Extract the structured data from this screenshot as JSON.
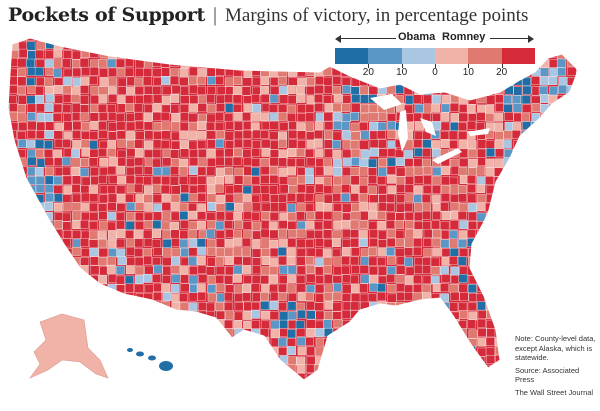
{
  "header": {
    "title": "Pockets of Support",
    "separator": "|",
    "subtitle": "Margins of victory, in percentage points"
  },
  "legend": {
    "left_label": "Obama",
    "right_label": "Romney",
    "ticks": [
      "20",
      "10",
      "0",
      "10",
      "20"
    ],
    "colors": [
      "#1f6fa6",
      "#5b97c6",
      "#a9c6e2",
      "#f1b3a8",
      "#e07a70",
      "#d42a3a"
    ]
  },
  "map": {
    "region": "Contiguous United States, Alaska and Hawaii by county",
    "dominant_color": "#d42a3a",
    "palette": {
      "obama_strong": "#1f6fa6",
      "obama_mid": "#5b97c6",
      "obama_lean": "#a9c6e2",
      "romney_lean": "#f1b3a8",
      "romney_mid": "#e07a70",
      "romney_strong": "#d42a3a"
    }
  },
  "notes": {
    "note": "Note: County-level data, except Alaska, which is statewide.",
    "source": "Source: Associated Press",
    "credit": "The Wall Street Journal"
  }
}
